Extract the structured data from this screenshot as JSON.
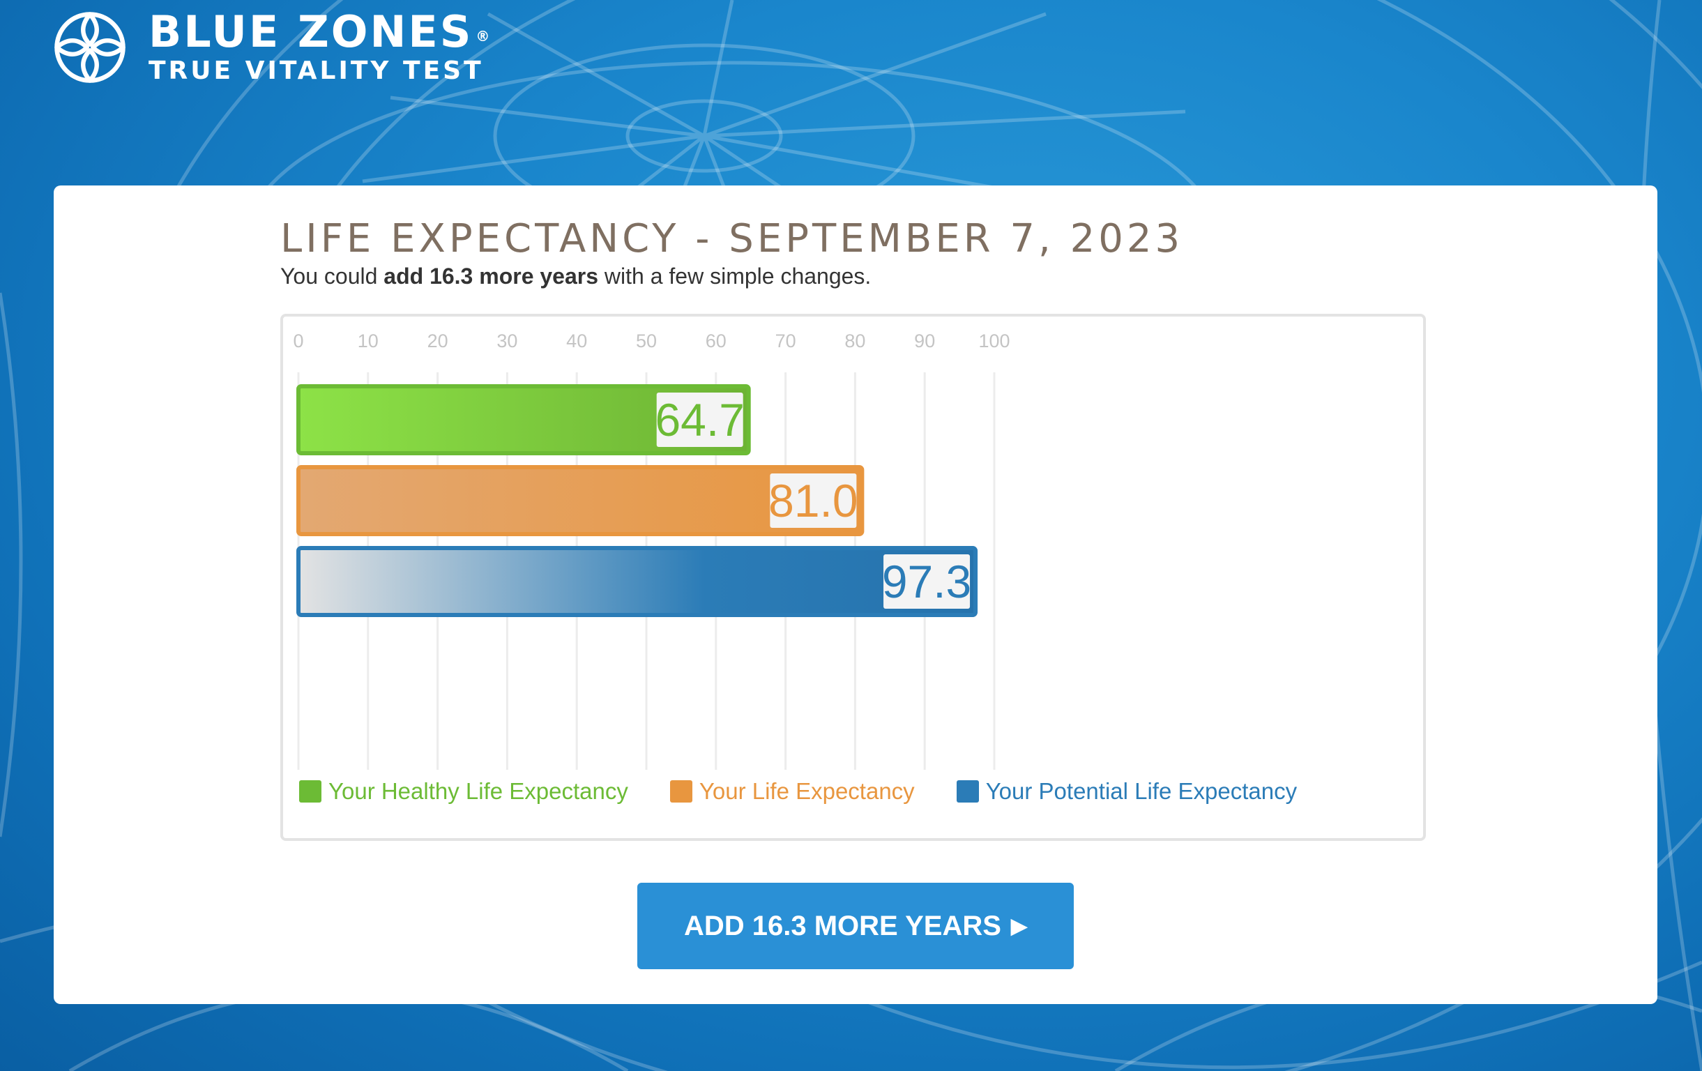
{
  "brand": {
    "name": "BLUE ZONES",
    "registered": "®",
    "subtitle": "TRUE VITALITY TEST"
  },
  "colors": {
    "background": "#1a86cc",
    "healthy": "#6cbb35",
    "life": "#e8963f",
    "potential": "#2b7cb7",
    "cta": "#2a90d6",
    "title": "#7f6f61"
  },
  "card": {
    "title": "LIFE EXPECTANCY - SEPTEMBER 7, 2023",
    "subtitle_prefix": "You could ",
    "subtitle_bold": "add 16.3 more years",
    "subtitle_suffix": " with a few simple changes."
  },
  "chart_data": {
    "type": "bar",
    "orientation": "horizontal",
    "xlim": [
      0,
      100
    ],
    "ticks": [
      "0",
      "10",
      "20",
      "30",
      "40",
      "50",
      "60",
      "70",
      "80",
      "90",
      "100"
    ],
    "grid": true,
    "series": [
      {
        "name": "Your Healthy Life Expectancy",
        "value": 64.7,
        "label": "64.7"
      },
      {
        "name": "Your Life Expectancy",
        "value": 81.0,
        "label": "81.0"
      },
      {
        "name": "Your Potential Life Expectancy",
        "value": 97.3,
        "label": "97.3"
      }
    ],
    "legend_placement": "bottom"
  },
  "cta": {
    "label": "ADD 16.3 MORE YEARS",
    "arrow_icon": "caret-right-icon"
  }
}
